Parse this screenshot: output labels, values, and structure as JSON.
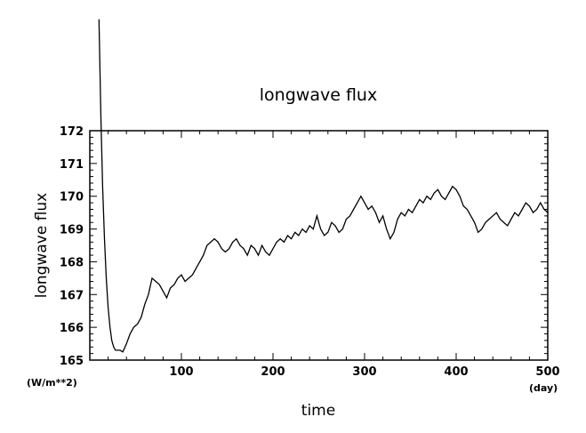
{
  "chart_data": {
    "type": "line",
    "title": "longwave flux",
    "xlabel": "time",
    "ylabel": "longwave flux",
    "x_unit": "(day)",
    "y_unit": "(W/m**2)",
    "xlim": [
      0,
      500
    ],
    "ylim": [
      165,
      172
    ],
    "x_ticks": [
      100,
      200,
      300,
      400,
      500
    ],
    "y_ticks": [
      165,
      166,
      167,
      168,
      169,
      170,
      171,
      172
    ],
    "grid": false,
    "line_color": "#000000",
    "series": [
      {
        "x": [
          10,
          12,
          14,
          16,
          18,
          20,
          22,
          24,
          26,
          28,
          30,
          33,
          36,
          40,
          44,
          48,
          52,
          56,
          60,
          64,
          68,
          72,
          76,
          80,
          84,
          88,
          92,
          96,
          100,
          104,
          108,
          112,
          116,
          120,
          124,
          128,
          132,
          136,
          140,
          144,
          148,
          152,
          156,
          160,
          164,
          168,
          172,
          176,
          180,
          184,
          188,
          192,
          196,
          200,
          204,
          208,
          212,
          216,
          220,
          224,
          228,
          232,
          236,
          240,
          244,
          248,
          252,
          256,
          260,
          264,
          268,
          272,
          276,
          280,
          284,
          288,
          292,
          296,
          300,
          304,
          308,
          312,
          316,
          320,
          324,
          328,
          332,
          336,
          340,
          344,
          348,
          352,
          356,
          360,
          364,
          368,
          372,
          376,
          380,
          384,
          388,
          392,
          396,
          400,
          404,
          408,
          412,
          416,
          420,
          424,
          428,
          432,
          436,
          440,
          444,
          448,
          452,
          456,
          460,
          464,
          468,
          472,
          476,
          480,
          484,
          488,
          492,
          496,
          500
        ],
        "y": [
          175.4,
          172.5,
          170.3,
          168.7,
          167.5,
          166.6,
          166.0,
          165.6,
          165.4,
          165.3,
          165.3,
          165.3,
          165.25,
          165.5,
          165.8,
          166.0,
          166.1,
          166.3,
          166.7,
          167.0,
          167.5,
          167.4,
          167.3,
          167.1,
          166.9,
          167.2,
          167.3,
          167.5,
          167.6,
          167.4,
          167.5,
          167.6,
          167.8,
          168.0,
          168.2,
          168.5,
          168.6,
          168.7,
          168.6,
          168.4,
          168.3,
          168.4,
          168.6,
          168.7,
          168.5,
          168.4,
          168.2,
          168.5,
          168.4,
          168.2,
          168.5,
          168.3,
          168.2,
          168.4,
          168.6,
          168.7,
          168.6,
          168.8,
          168.7,
          168.9,
          168.8,
          169.0,
          168.9,
          169.1,
          169.0,
          169.4,
          169.0,
          168.8,
          168.9,
          169.2,
          169.1,
          168.9,
          169.0,
          169.3,
          169.4,
          169.6,
          169.8,
          170.0,
          169.8,
          169.6,
          169.7,
          169.5,
          169.2,
          169.4,
          169.0,
          168.7,
          168.9,
          169.3,
          169.5,
          169.4,
          169.6,
          169.5,
          169.7,
          169.9,
          169.8,
          170.0,
          169.9,
          170.1,
          170.2,
          170.0,
          169.9,
          170.1,
          170.3,
          170.2,
          170.0,
          169.7,
          169.6,
          169.4,
          169.2,
          168.9,
          169.0,
          169.2,
          169.3,
          169.4,
          169.5,
          169.3,
          169.2,
          169.1,
          169.3,
          169.5,
          169.4,
          169.6,
          169.8,
          169.7,
          169.5,
          169.6,
          169.8,
          169.6,
          169.5
        ]
      }
    ]
  }
}
